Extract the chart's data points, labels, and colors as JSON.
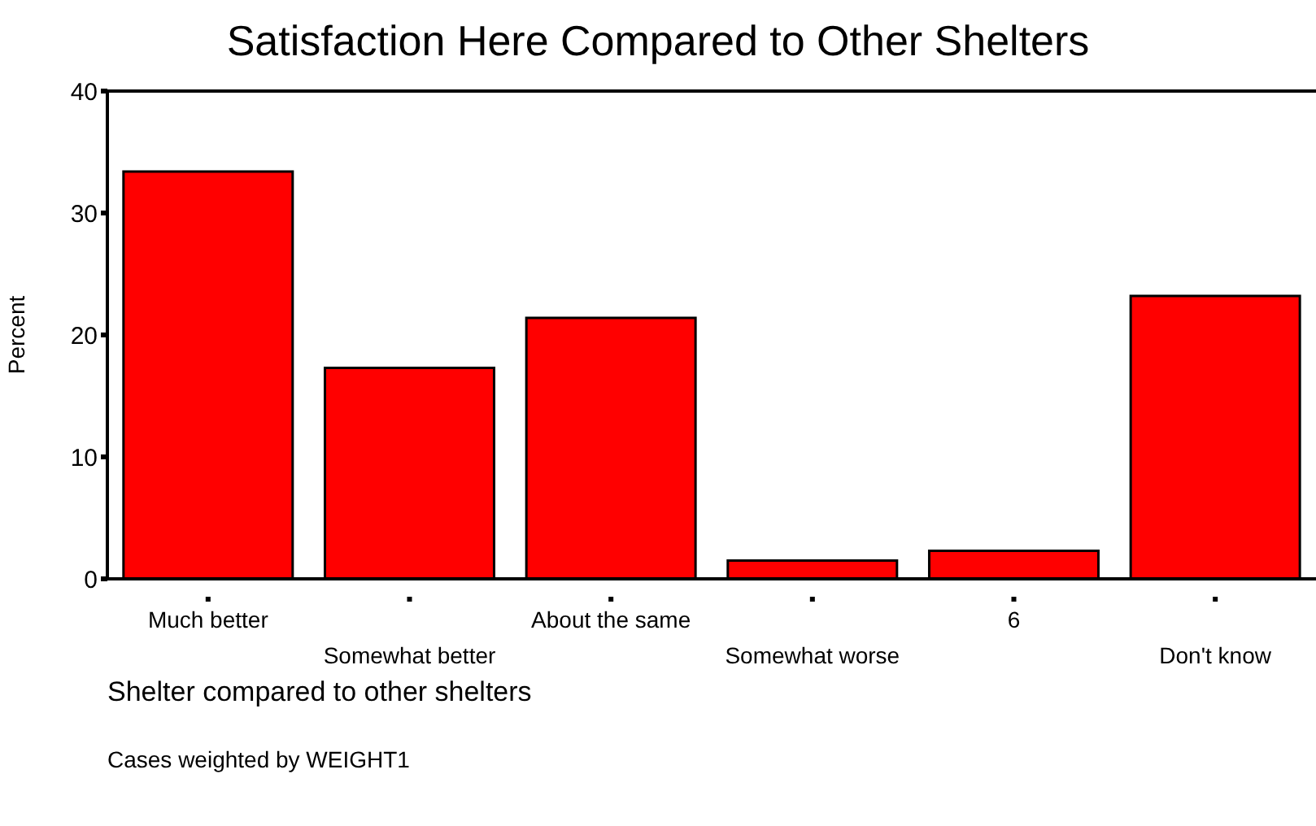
{
  "chart_data": {
    "type": "bar",
    "title": "Satisfaction Here Compared to Other Shelters",
    "xlabel": "Shelter compared to other shelters",
    "ylabel": "Percent",
    "categories": [
      "Much better",
      "Somewhat better",
      "About the same",
      "Somewhat worse",
      "6",
      "Don't know"
    ],
    "values": [
      33.4,
      17.3,
      21.4,
      1.5,
      2.3,
      23.2
    ],
    "color": "#ff0000",
    "ylim": [
      0,
      40
    ],
    "yticks": [
      0,
      10,
      20,
      30,
      40
    ],
    "annotations": [
      "Cases weighted by WEIGHT1"
    ]
  }
}
